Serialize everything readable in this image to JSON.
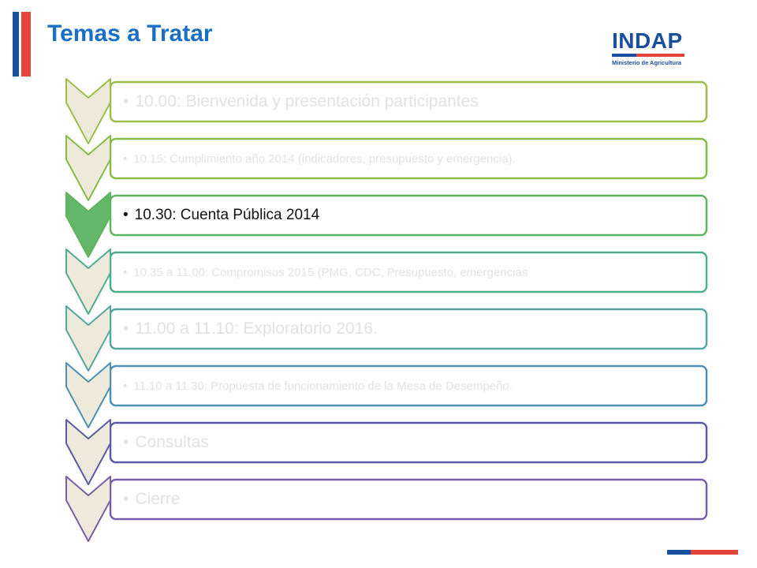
{
  "slide": {
    "title": "Temas a Tratar"
  },
  "logo": {
    "name": "INDAP",
    "subtitle": "Ministerio de Agricultura"
  },
  "colors": {
    "title": "#1a6fc4",
    "brand_blue": "#1a4fa0",
    "brand_red": "#e4443c",
    "chevron_fill": "#edeadb",
    "chevron_active_fill": "#63b76a",
    "inactive_text": "#e2e2e2",
    "active_text": "#111111"
  },
  "agenda": {
    "items": [
      {
        "text": "10.00: Bienvenida y presentación participantes",
        "active": false,
        "border_color": "#9dbf4a",
        "size": "large"
      },
      {
        "text": "10.15: Cumplimiento año 2014 (indicadores, presupuesto y emergencia).",
        "active": false,
        "border_color": "#86bb48",
        "size": "small"
      },
      {
        "text": "10.30: Cuenta Pública 2014",
        "active": true,
        "border_color": "#5fb55f",
        "size": "medium"
      },
      {
        "text": "10.35 a 11.00: Compromisos 2015 (PMG, CDC, Presupuesto, emergencias",
        "active": false,
        "border_color": "#4fae8a",
        "size": "small"
      },
      {
        "text": "11.00 a 11.10: Exploratorio 2016.",
        "active": false,
        "border_color": "#55a7a0",
        "size": "large"
      },
      {
        "text": "11.10 a 11.30: Propuesta de funcionamiento de la Mesa de Desempeño.",
        "active": false,
        "border_color": "#4f8fb3",
        "size": "small"
      },
      {
        "text": "Consultas",
        "active": false,
        "border_color": "#5a5aa8",
        "size": "large"
      },
      {
        "text": "Cierre",
        "active": false,
        "border_color": "#7a5fa8",
        "size": "large"
      }
    ]
  }
}
